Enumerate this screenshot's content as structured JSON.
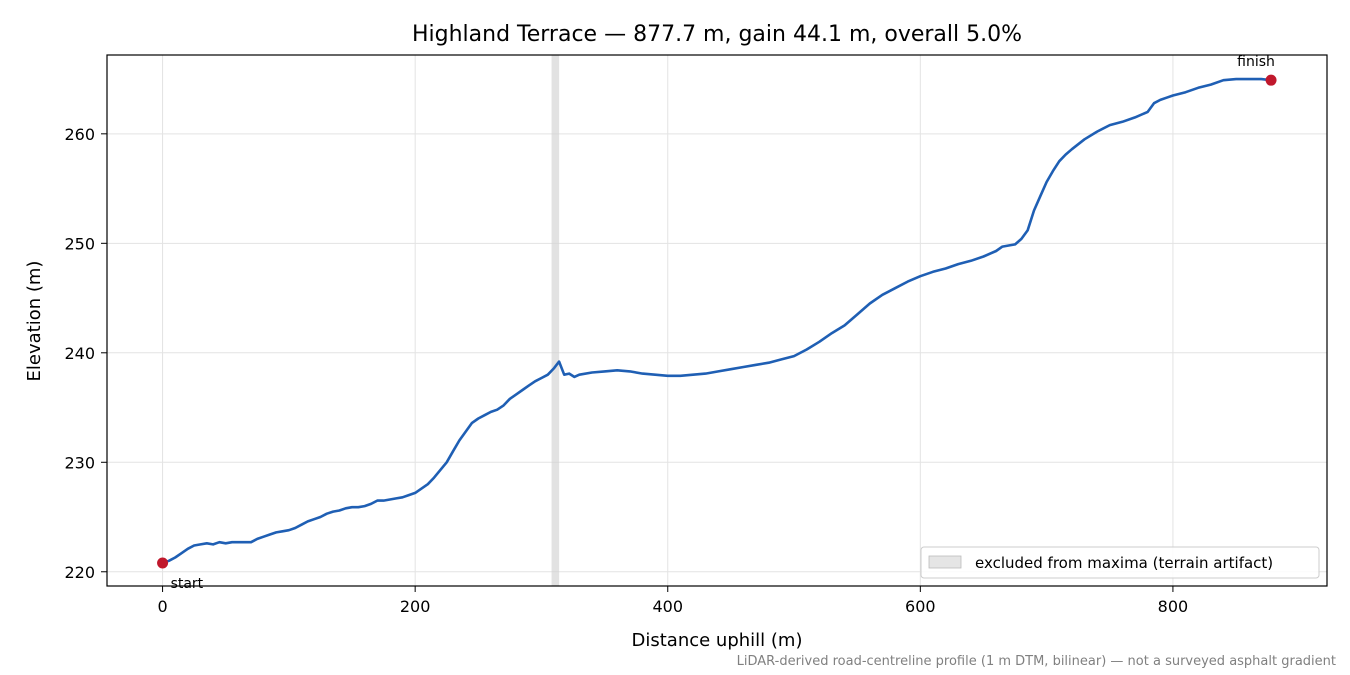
{
  "chart_data": {
    "type": "line",
    "title": "Highland Terrace — 877.7 m, gain 44.1 m, overall 5.0%",
    "xlabel": "Distance uphill (m)",
    "ylabel": "Elevation (m)",
    "xlim": [
      -44,
      922
    ],
    "ylim": [
      218.7,
      267.2
    ],
    "xticks": [
      0,
      200,
      400,
      600,
      800
    ],
    "yticks": [
      220,
      230,
      240,
      250,
      260
    ],
    "grid": true,
    "legend_position": "lower-right",
    "footnote": "LiDAR-derived road-centreline profile (1 m DTM, bilinear) — not a surveyed asphalt gradient",
    "colors": {
      "line": "#1f5fb4",
      "endpoint": "#c0182c",
      "excluded": "#d3d3d3"
    },
    "excluded_band": {
      "x_start": 308,
      "x_end": 314,
      "label": "excluded from maxima (terrain artifact)"
    },
    "endpoints": [
      {
        "label": "start",
        "x": 0,
        "y": 220.8
      },
      {
        "label": "finish",
        "x": 877.7,
        "y": 264.9
      }
    ],
    "series": [
      {
        "x": [
          0,
          5,
          10,
          15,
          20,
          25,
          30,
          35,
          40,
          45,
          50,
          55,
          60,
          65,
          70,
          75,
          80,
          85,
          90,
          95,
          100,
          105,
          110,
          115,
          120,
          125,
          130,
          135,
          140,
          145,
          150,
          155,
          160,
          165,
          170,
          175,
          180,
          185,
          190,
          195,
          200,
          205,
          210,
          215,
          220,
          225,
          230,
          235,
          240,
          245,
          250,
          255,
          260,
          265,
          270,
          275,
          280,
          285,
          290,
          295,
          300,
          305,
          310,
          314,
          318,
          322,
          326,
          330,
          340,
          350,
          360,
          370,
          380,
          390,
          400,
          410,
          420,
          430,
          440,
          450,
          460,
          470,
          480,
          490,
          500,
          510,
          520,
          530,
          540,
          550,
          560,
          570,
          580,
          590,
          600,
          610,
          620,
          630,
          640,
          650,
          660,
          665,
          670,
          675,
          680,
          685,
          690,
          695,
          700,
          705,
          710,
          715,
          720,
          730,
          740,
          750,
          760,
          770,
          780,
          785,
          790,
          795,
          800,
          810,
          820,
          830,
          840,
          850,
          860,
          870,
          877.7
        ],
        "y": [
          220.8,
          221.0,
          221.3,
          221.7,
          222.1,
          222.4,
          222.5,
          222.6,
          222.5,
          222.7,
          222.6,
          222.7,
          222.7,
          222.7,
          222.7,
          223.0,
          223.2,
          223.4,
          223.6,
          223.7,
          223.8,
          224.0,
          224.3,
          224.6,
          224.8,
          225.0,
          225.3,
          225.5,
          225.6,
          225.8,
          225.9,
          225.9,
          226.0,
          226.2,
          226.5,
          226.5,
          226.6,
          226.7,
          226.8,
          227.0,
          227.2,
          227.6,
          228.0,
          228.6,
          229.3,
          230.0,
          231.0,
          232.0,
          232.8,
          233.6,
          234.0,
          234.3,
          234.6,
          234.8,
          235.2,
          235.8,
          236.2,
          236.6,
          237.0,
          237.4,
          237.7,
          238.0,
          238.6,
          239.2,
          238.0,
          238.1,
          237.8,
          238.0,
          238.2,
          238.3,
          238.4,
          238.3,
          238.1,
          238.0,
          237.9,
          237.9,
          238.0,
          238.1,
          238.3,
          238.5,
          238.7,
          238.9,
          239.1,
          239.4,
          239.7,
          240.3,
          241.0,
          241.8,
          242.5,
          243.5,
          244.5,
          245.3,
          245.9,
          246.5,
          247.0,
          247.4,
          247.7,
          248.1,
          248.4,
          248.8,
          249.3,
          249.7,
          249.8,
          249.9,
          250.4,
          251.2,
          253.0,
          254.3,
          255.6,
          256.6,
          257.5,
          258.1,
          258.6,
          259.5,
          260.2,
          260.8,
          261.1,
          261.5,
          262.0,
          262.8,
          263.1,
          263.3,
          263.5,
          263.8,
          264.2,
          264.5,
          264.9,
          265.0,
          265.0,
          265.0,
          264.9
        ]
      }
    ]
  }
}
